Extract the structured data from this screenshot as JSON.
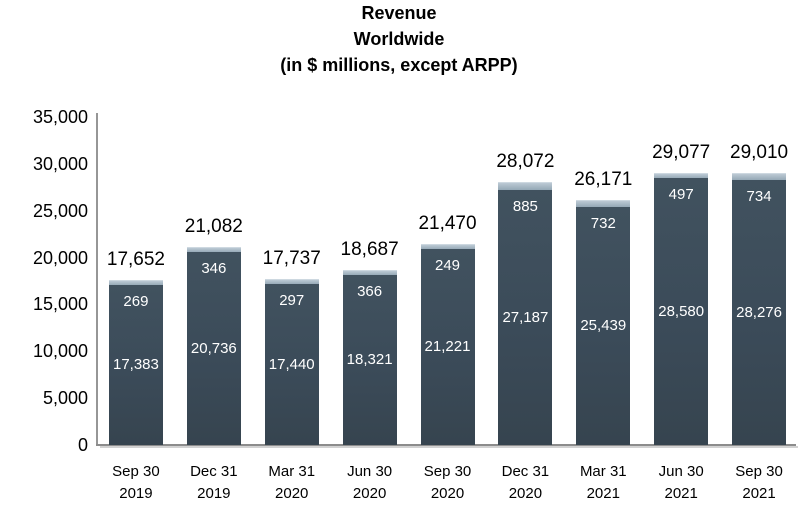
{
  "title": {
    "line1": "Revenue",
    "line2": "Worldwide",
    "line3": "(in $ millions, except ARPP)"
  },
  "colors": {
    "bar_lower": "#3b4b59",
    "bar_upper": "#a7b8c4",
    "axis": "#8c8c8c",
    "label_inside": "#ffffff",
    "label_outside": "#000000"
  },
  "chart_data": {
    "type": "bar",
    "stacked": true,
    "title": "Revenue Worldwide (in $ millions, except ARPP)",
    "categories": [
      [
        "Sep 30",
        "2019"
      ],
      [
        "Dec 31",
        "2019"
      ],
      [
        "Mar 31",
        "2020"
      ],
      [
        "Jun 30",
        "2020"
      ],
      [
        "Sep 30",
        "2020"
      ],
      [
        "Dec 31",
        "2020"
      ],
      [
        "Mar 31",
        "2021"
      ],
      [
        "Jun 30",
        "2021"
      ],
      [
        "Sep 30",
        "2021"
      ]
    ],
    "series": [
      {
        "name": "lower-segment",
        "color": "#3b4b59",
        "values": [
          17383,
          20736,
          17440,
          18321,
          21221,
          27187,
          25439,
          28580,
          28276
        ]
      },
      {
        "name": "upper-segment",
        "color": "#a7b8c4",
        "values": [
          269,
          346,
          297,
          366,
          249,
          885,
          732,
          497,
          734
        ]
      }
    ],
    "totals": [
      17652,
      21082,
      17737,
      18687,
      21470,
      28072,
      26171,
      29077,
      29010
    ],
    "y_axis": {
      "min": 0,
      "max": 35000,
      "step": 5000,
      "tick_labels": [
        "0",
        "5,000",
        "10,000",
        "15,000",
        "20,000",
        "25,000",
        "30,000",
        "35,000"
      ]
    },
    "grid": false,
    "legend": false
  }
}
